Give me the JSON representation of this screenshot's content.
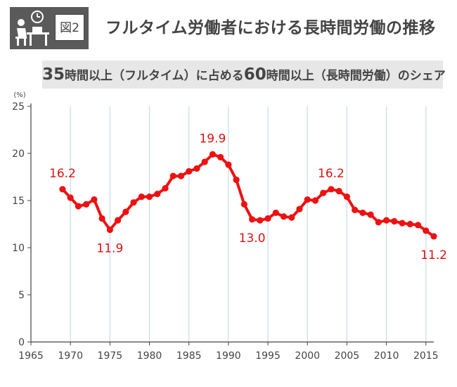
{
  "header": {
    "badge_label": "図2",
    "title": "フルタイム労働者における長時間労働の推移",
    "subtitle_num1": "35",
    "subtitle_part1": "時間以上（フルタイム）に占める",
    "subtitle_num2": "60",
    "subtitle_part2": "時間以上（長時間労働）のシェア",
    "icon": "worker-at-desk-clock-icon"
  },
  "chart_data": {
    "type": "line",
    "title": "35時間以上（フルタイム）に占める60時間以上（長時間労働）のシェア",
    "ylabel": "(%)",
    "xlabel": "",
    "xlim": [
      1965,
      2016
    ],
    "ylim": [
      0,
      25
    ],
    "x_ticks": [
      1965,
      1970,
      1975,
      1980,
      1985,
      1990,
      1995,
      2000,
      2005,
      2010,
      2015
    ],
    "y_ticks": [
      0,
      5,
      10,
      15,
      20,
      25
    ],
    "grid": "vertical",
    "line_color": "#ee1111",
    "label_color": "#dd1111",
    "axis_color": "#444444",
    "grid_color": "#c5dcea",
    "series": [
      {
        "x": [
          1969,
          1970,
          1971,
          1972,
          1973,
          1974,
          1975,
          1976,
          1977,
          1978,
          1979,
          1980,
          1981,
          1982,
          1983,
          1984,
          1985,
          1986,
          1987,
          1988,
          1989,
          1990,
          1991,
          1992,
          1993,
          1994,
          1995,
          1996,
          1997,
          1998,
          1999,
          2000,
          2001,
          2002,
          2003,
          2004,
          2005,
          2006,
          2007,
          2008,
          2009,
          2010,
          2011,
          2012,
          2013,
          2014,
          2015,
          2016
        ],
        "y": [
          16.2,
          15.3,
          14.4,
          14.6,
          15.1,
          13.1,
          11.9,
          12.9,
          13.8,
          14.8,
          15.4,
          15.4,
          15.7,
          16.3,
          17.6,
          17.6,
          18.1,
          18.4,
          19.1,
          19.9,
          19.6,
          18.8,
          17.2,
          14.6,
          13.0,
          12.9,
          13.1,
          13.7,
          13.3,
          13.2,
          14.1,
          15.1,
          15.0,
          15.8,
          16.2,
          16.0,
          15.4,
          14.0,
          13.7,
          13.5,
          12.7,
          12.9,
          12.8,
          12.6,
          12.5,
          12.4,
          11.8,
          11.2
        ]
      }
    ],
    "annotations": [
      {
        "x": 1969,
        "y": 16.2,
        "text": "16.2",
        "position": "above"
      },
      {
        "x": 1975,
        "y": 11.9,
        "text": "11.9",
        "position": "below"
      },
      {
        "x": 1988,
        "y": 19.9,
        "text": "19.9",
        "position": "above"
      },
      {
        "x": 1993,
        "y": 13.0,
        "text": "13.0",
        "position": "below"
      },
      {
        "x": 2003,
        "y": 16.2,
        "text": "16.2",
        "position": "above"
      },
      {
        "x": 2016,
        "y": 11.2,
        "text": "11.2",
        "position": "below"
      }
    ]
  }
}
